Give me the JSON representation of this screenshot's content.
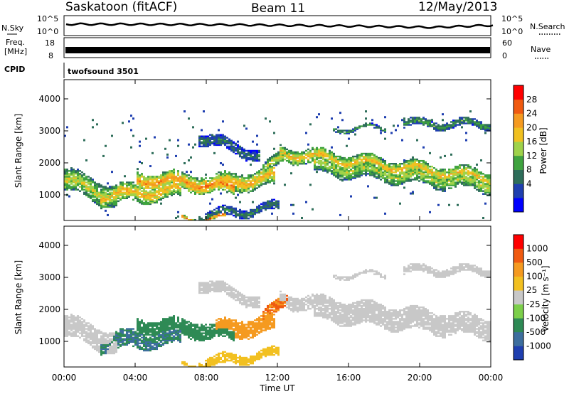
{
  "header": {
    "station": "Saskatoon (fitACF)",
    "beam": "Beam 11",
    "date": "12/May/2013"
  },
  "strip_labels": {
    "nsky": "N.Sky",
    "nsky_ticks": [
      "10^5",
      "10^0"
    ],
    "freq": "Freq.",
    "freq_unit": "[MHz]",
    "freq_ticks": [
      "18",
      "8"
    ],
    "cpid": "CPID",
    "cpid_value": "twofsound 3501",
    "nsearch": "N.Search",
    "nsearch_ticks": [
      "10^5",
      "10^0"
    ],
    "nave": "Nave",
    "nave_ticks": [
      "60",
      "0"
    ]
  },
  "chart_data": [
    {
      "type": "heatmap",
      "panel": "power",
      "ylabel": "Slant Range [km]",
      "ylim": [
        200,
        4600
      ],
      "yticks": [
        1000,
        2000,
        3000,
        4000
      ],
      "xlim_hours": [
        0,
        24
      ],
      "colorbar_label": "Power [dB]",
      "colorbar_ticks": [
        28,
        24,
        20,
        16,
        12,
        8,
        4
      ],
      "colors": [
        "#0000ff",
        "#1f3fb0",
        "#2e6e5a",
        "#3fa33f",
        "#9fd24a",
        "#f0c020",
        "#f59a20",
        "#f05a10",
        "#ff0000"
      ]
    },
    {
      "type": "heatmap",
      "panel": "velocity",
      "ylabel": "Slant Range [km]",
      "ylim": [
        200,
        4600
      ],
      "yticks": [
        1000,
        2000,
        3000,
        4000
      ],
      "xlim_hours": [
        0,
        24
      ],
      "xlabel": "Time UT",
      "xticks": [
        "00:00",
        "04:00",
        "08:00",
        "12:00",
        "16:00",
        "20:00",
        "00:00"
      ],
      "colorbar_label": "Velocity [m s⁻¹]",
      "colorbar_ticks": [
        1000,
        500,
        100,
        25,
        -25,
        -100,
        -500,
        -1000
      ],
      "colors": [
        "#1f3fb0",
        "#3d6e9e",
        "#2e8a55",
        "#7ccf4a",
        "#c8c8c8",
        "#f2c020",
        "#f59a20",
        "#f05a10",
        "#ff0000"
      ]
    }
  ]
}
